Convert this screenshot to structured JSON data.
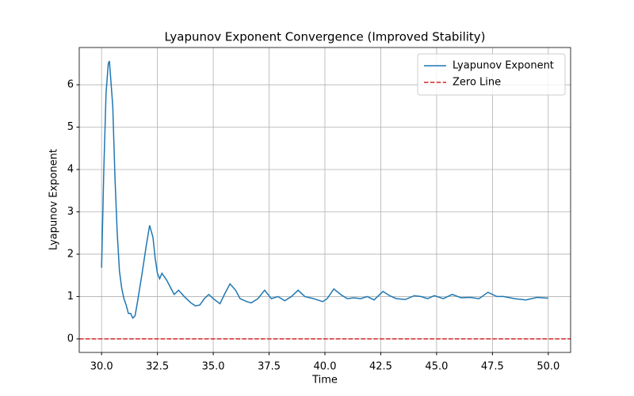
{
  "chart_data": {
    "type": "line",
    "title": "Lyapunov Exponent Convergence (Improved Stability)",
    "xlabel": "Time",
    "ylabel": "Lyapunov Exponent",
    "x": [
      30.0,
      30.1,
      30.2,
      30.3,
      30.35,
      30.5,
      30.6,
      30.7,
      30.8,
      30.9,
      31.0,
      31.1,
      31.2,
      31.3,
      31.4,
      31.5,
      31.6,
      31.8,
      32.0,
      32.15,
      32.3,
      32.4,
      32.5,
      32.6,
      32.7,
      32.9,
      33.1,
      33.25,
      33.45,
      33.7,
      34.0,
      34.2,
      34.4,
      34.6,
      34.8,
      35.0,
      35.3,
      35.5,
      35.75,
      36.0,
      36.2,
      36.5,
      36.7,
      37.0,
      37.3,
      37.6,
      37.9,
      38.2,
      38.5,
      38.8,
      39.1,
      39.5,
      39.9,
      40.1,
      40.4,
      40.7,
      41.0,
      41.3,
      41.6,
      41.9,
      42.2,
      42.6,
      42.9,
      43.2,
      43.6,
      44.0,
      44.3,
      44.6,
      44.9,
      45.3,
      45.7,
      46.1,
      46.5,
      46.9,
      47.3,
      47.7,
      48.0,
      48.5,
      49.0,
      49.5,
      50.0
    ],
    "series": [
      {
        "name": "Lyapunov Exponent",
        "color": "#1f77b4",
        "values": [
          1.68,
          4.0,
          5.8,
          6.5,
          6.56,
          5.5,
          3.8,
          2.5,
          1.6,
          1.2,
          0.95,
          0.8,
          0.6,
          0.6,
          0.49,
          0.55,
          0.85,
          1.5,
          2.2,
          2.68,
          2.4,
          1.9,
          1.55,
          1.42,
          1.55,
          1.4,
          1.2,
          1.05,
          1.15,
          1.0,
          0.85,
          0.78,
          0.8,
          0.95,
          1.05,
          0.95,
          0.83,
          1.05,
          1.3,
          1.15,
          0.95,
          0.88,
          0.85,
          0.95,
          1.15,
          0.95,
          1.0,
          0.9,
          1.0,
          1.15,
          1.0,
          0.95,
          0.88,
          0.95,
          1.18,
          1.05,
          0.95,
          0.97,
          0.95,
          1.0,
          0.92,
          1.12,
          1.02,
          0.95,
          0.93,
          1.02,
          1.0,
          0.95,
          1.02,
          0.95,
          1.05,
          0.97,
          0.98,
          0.95,
          1.1,
          1.0,
          1.0,
          0.95,
          0.92,
          0.98,
          0.96
        ]
      }
    ],
    "reference_lines": [
      {
        "name": "Zero Line",
        "y": 0,
        "color": "#d62728",
        "dashed": true
      }
    ],
    "xlim": [
      29.0,
      51.0
    ],
    "xticks": [
      {
        "value": 30,
        "label": "30.0"
      },
      32.5,
      {
        "value": 35,
        "label": "35.0"
      },
      37.5,
      {
        "value": 40,
        "label": "40.0"
      },
      42.5,
      {
        "value": 45,
        "label": "45.0"
      },
      47.5,
      {
        "value": 50,
        "label": "50.0"
      }
    ],
    "ylim": [
      -0.32,
      6.88
    ],
    "yticks": [
      0,
      1,
      2,
      3,
      4,
      5,
      6
    ],
    "grid": true,
    "legend": "upper right"
  }
}
